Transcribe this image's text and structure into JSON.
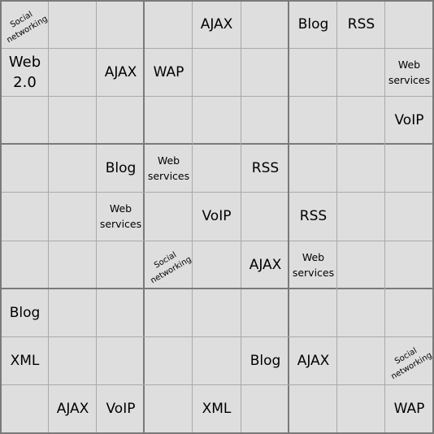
{
  "grid": {
    "rows": [
      [
        "Social\nnetworking",
        "",
        "",
        "",
        "AJAX",
        "",
        "Blog",
        "RSS",
        ""
      ],
      [
        "Web\n2.0",
        "",
        "AJAX",
        "WAP",
        "",
        "",
        "",
        "",
        "Web\nservices"
      ],
      [
        "",
        "",
        "",
        "",
        "",
        "",
        "",
        "",
        "VoIP"
      ],
      [
        "",
        "",
        "Blog",
        "Web\nservices",
        "",
        "RSS",
        "",
        "",
        ""
      ],
      [
        "",
        "",
        "Web\nservices",
        "",
        "VoIP",
        "",
        "RSS",
        "",
        ""
      ],
      [
        "",
        "",
        "",
        "Social\nnetworking",
        "",
        "AJAX",
        "Web\nservices",
        "",
        ""
      ],
      [
        "Blog",
        "",
        "",
        "",
        "",
        "",
        "",
        "",
        ""
      ],
      [
        "XML",
        "",
        "",
        "",
        "",
        "Blog",
        "AJAX",
        "",
        "Social\nnetworking"
      ],
      [
        "",
        "AJAX",
        "VoIP",
        "",
        "XML",
        "",
        "",
        "",
        "WAP"
      ]
    ]
  }
}
